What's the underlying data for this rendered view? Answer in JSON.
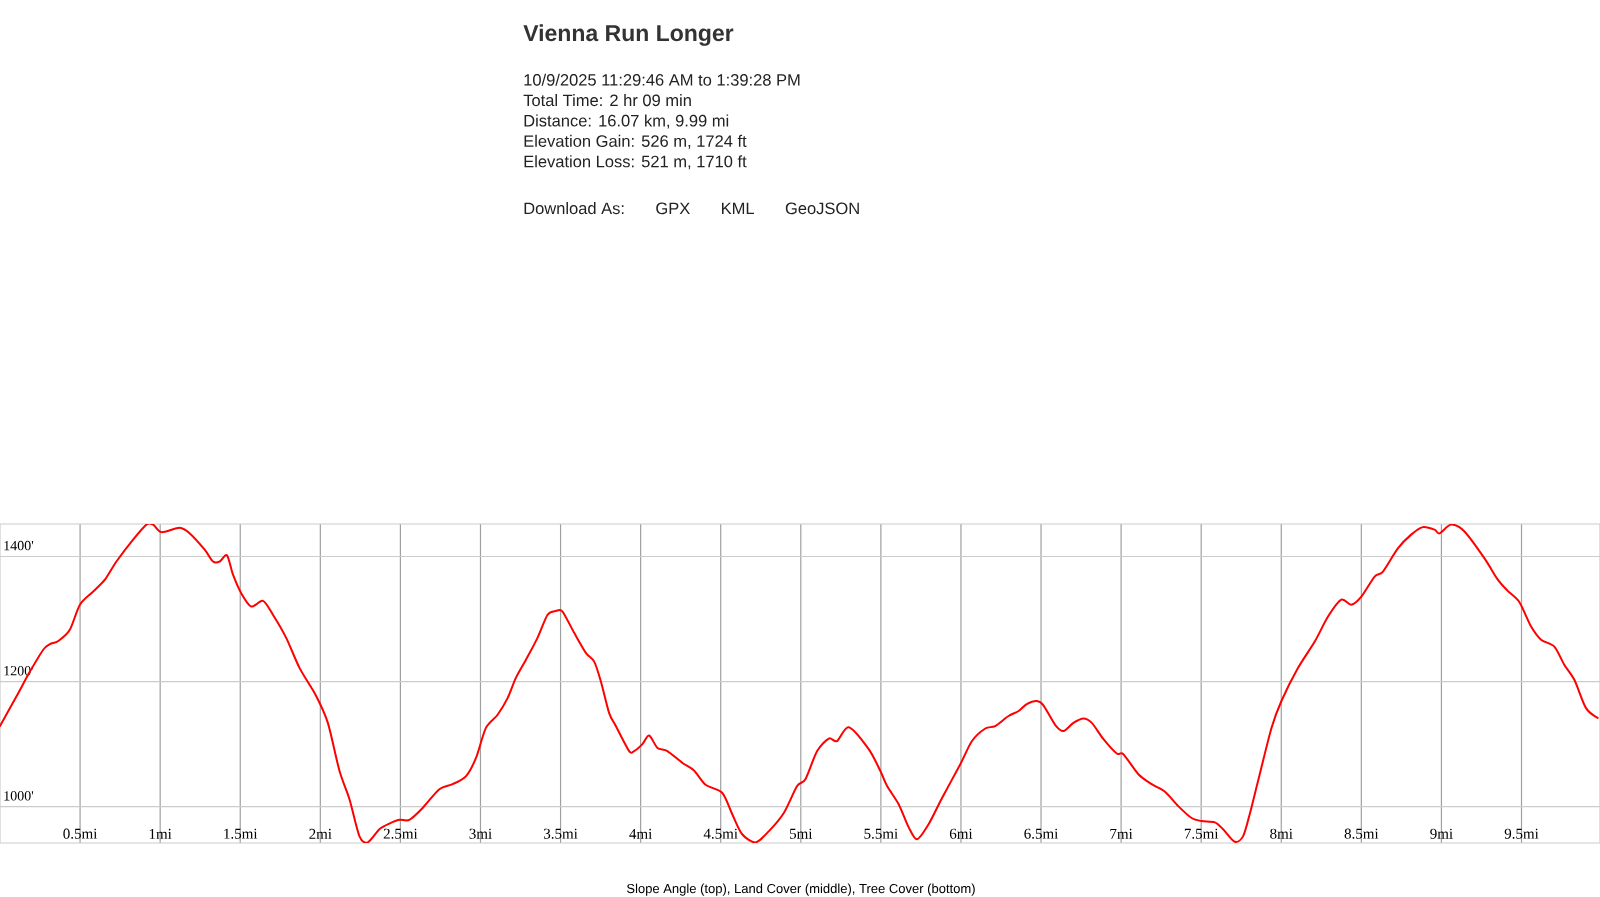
{
  "chart_data": {
    "type": "line",
    "title": "Vienna Run Longer",
    "annotations": [
      "10/9/2025 11:29:46 AM to 1:39:28 PM",
      "Total Time: 2 hr 09 min",
      "Distance: 16.07 km, 9.99 mi",
      "Elevation Gain: 526 m, 1724 ft",
      "Elevation Loss: 521 m, 1710 ft",
      "Download As:",
      "GPX",
      "KML",
      "GeoJSON",
      "Slope Angle (top), Land Cover (middle), Tree Cover (bottom)"
    ],
    "x": [
      0.0,
      0.104,
      0.187,
      0.27,
      0.312,
      0.364,
      0.436,
      0.499,
      0.582,
      0.655,
      0.727,
      0.831,
      0.914,
      0.956,
      1.008,
      1.122,
      1.185,
      1.278,
      1.33,
      1.372,
      1.417,
      1.455,
      1.507,
      1.569,
      1.642,
      1.704,
      1.787,
      1.87,
      1.974,
      2.047,
      2.12,
      2.182,
      2.244,
      2.296,
      2.369,
      2.431,
      2.494,
      2.556,
      2.639,
      2.743,
      2.826,
      2.91,
      2.972,
      3.034,
      3.107,
      3.17,
      3.221,
      3.284,
      3.356,
      3.419,
      3.471,
      3.512,
      3.585,
      3.658,
      3.71,
      3.751,
      3.803,
      3.845,
      3.928,
      3.959,
      4.011,
      4.053,
      4.105,
      4.167,
      4.261,
      4.333,
      4.406,
      4.51,
      4.572,
      4.634,
      4.718,
      4.801,
      4.894,
      4.977,
      5.029,
      5.102,
      5.175,
      5.227,
      5.3,
      5.424,
      5.497,
      5.539,
      5.611,
      5.674,
      5.726,
      5.798,
      5.882,
      5.996,
      6.069,
      6.152,
      6.214,
      6.297,
      6.36,
      6.411,
      6.474,
      6.515,
      6.588,
      6.64,
      6.702,
      6.765,
      6.817,
      6.89,
      6.973,
      7.014,
      7.108,
      7.191,
      7.274,
      7.357,
      7.44,
      7.503,
      7.585,
      7.637,
      7.71,
      7.762,
      7.803,
      7.855,
      7.939,
      8.001,
      8.105,
      8.209,
      8.292,
      8.375,
      8.437,
      8.5,
      8.583,
      8.635,
      8.728,
      8.811,
      8.884,
      8.957,
      8.988,
      9.061,
      9.144,
      9.269,
      9.352,
      9.414,
      9.487,
      9.56,
      9.622,
      9.705,
      9.767,
      9.83,
      9.902,
      9.975
    ],
    "series": [
      {
        "color": "#ff0000",
        "values": [
          1129,
          1177,
          1216,
          1251,
          1260,
          1265,
          1283,
          1323,
          1344,
          1363,
          1392,
          1427,
          1451,
          1451,
          1439,
          1446,
          1437,
          1411,
          1392,
          1392,
          1402,
          1371,
          1341,
          1320,
          1329,
          1307,
          1270,
          1222,
          1177,
          1134,
          1057,
          1012,
          953,
          943,
          964,
          973,
          979,
          979,
          998,
          1028,
          1036,
          1049,
          1078,
          1126,
          1147,
          1174,
          1206,
          1235,
          1270,
          1307,
          1313,
          1312,
          1278,
          1246,
          1232,
          1201,
          1150,
          1129,
          1089,
          1089,
          1100,
          1114,
          1094,
          1089,
          1070,
          1058,
          1035,
          1022,
          988,
          956,
          943,
          961,
          990,
          1033,
          1044,
          1089,
          1109,
          1105,
          1127,
          1092,
          1057,
          1033,
          1004,
          967,
          948,
          972,
          1014,
          1068,
          1105,
          1125,
          1129,
          1145,
          1153,
          1164,
          1169,
          1162,
          1131,
          1121,
          1134,
          1141,
          1134,
          1108,
          1085,
          1084,
          1052,
          1036,
          1024,
          1001,
          982,
          977,
          975,
          964,
          944,
          953,
          988,
          1041,
          1126,
          1169,
          1222,
          1264,
          1304,
          1331,
          1323,
          1336,
          1368,
          1376,
          1413,
          1435,
          1447,
          1443,
          1437,
          1451,
          1440,
          1397,
          1363,
          1345,
          1327,
          1288,
          1267,
          1256,
          1227,
          1203,
          1158,
          1142
        ]
      }
    ],
    "xlim": [
      0,
      9.99
    ],
    "ylim": [
      942,
      1452
    ],
    "xticks": [
      {
        "value": 0.5,
        "label": "0.5mi"
      },
      {
        "value": 1,
        "label": "1mi"
      },
      {
        "value": 1.5,
        "label": "1.5mi"
      },
      {
        "value": 2,
        "label": "2mi"
      },
      {
        "value": 2.5,
        "label": "2.5mi"
      },
      {
        "value": 3,
        "label": "3mi"
      },
      {
        "value": 3.5,
        "label": "3.5mi"
      },
      {
        "value": 4,
        "label": "4mi"
      },
      {
        "value": 4.5,
        "label": "4.5mi"
      },
      {
        "value": 5,
        "label": "5mi"
      },
      {
        "value": 5.5,
        "label": "5.5mi"
      },
      {
        "value": 6,
        "label": "6mi"
      },
      {
        "value": 6.5,
        "label": "6.5mi"
      },
      {
        "value": 7,
        "label": "7mi"
      },
      {
        "value": 7.5,
        "label": "7.5mi"
      },
      {
        "value": 8,
        "label": "8mi"
      },
      {
        "value": 8.5,
        "label": "8.5mi"
      },
      {
        "value": 9,
        "label": "9mi"
      },
      {
        "value": 9.5,
        "label": "9.5mi"
      }
    ],
    "yticks": [
      {
        "value": 1000,
        "label": "1000'"
      },
      {
        "value": 1200,
        "label": "1200'"
      },
      {
        "value": 1400,
        "label": "1400'"
      }
    ],
    "grid": true
  }
}
